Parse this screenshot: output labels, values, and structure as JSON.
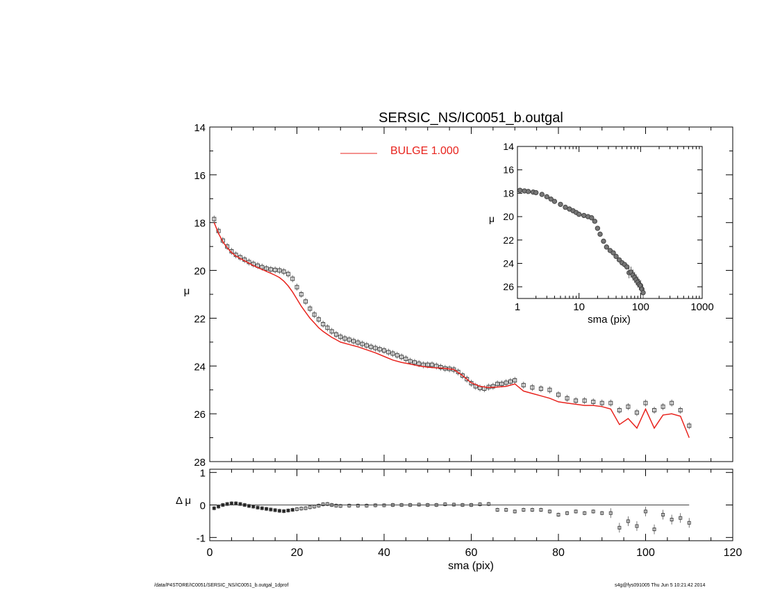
{
  "footer": {
    "left": "/data/P4STORE/IC0051/SERSIC_NS/IC0051_b.outgal_1dprof",
    "right": "s4g@fys091005  Thu Jun  5 10:21:42 2014"
  },
  "chart_data": [
    {
      "type": "line",
      "title": "SERSIC_NS/IC0051_b.outgal",
      "xlabel": "",
      "ylabel": "μ",
      "xlim": [
        0,
        120
      ],
      "ylim": [
        28,
        14
      ],
      "y_inverted": true,
      "xticks": [
        "0",
        "20",
        "40",
        "60",
        "80",
        "100",
        "120"
      ],
      "yticks": [
        "14",
        "16",
        "18",
        "20",
        "22",
        "24",
        "26",
        "28"
      ],
      "legend": {
        "placement": "top-center",
        "entries": [
          {
            "label": "BULGE  1.000",
            "color": "#e8231d"
          }
        ]
      },
      "series": [
        {
          "name": "BULGE  1.000",
          "style": "line",
          "color": "#e8231d",
          "x": [
            1,
            2,
            3,
            4,
            5,
            6,
            7,
            8,
            9,
            10,
            11,
            12,
            13,
            14,
            15,
            16,
            17,
            18,
            19,
            20,
            21,
            22,
            23,
            24,
            25,
            26,
            27,
            28,
            29,
            30,
            32,
            34,
            36,
            38,
            40,
            42,
            44,
            46,
            48,
            50,
            52,
            54,
            56,
            58,
            60,
            62,
            64,
            66,
            68,
            70,
            72,
            74,
            76,
            78,
            80,
            82,
            84,
            86,
            88,
            90,
            92,
            94,
            96,
            98,
            100,
            102,
            104,
            106,
            108,
            110
          ],
          "y": [
            18.0,
            18.45,
            18.8,
            19.05,
            19.25,
            19.4,
            19.5,
            19.6,
            19.7,
            19.8,
            19.88,
            19.96,
            20.04,
            20.12,
            20.2,
            20.3,
            20.45,
            20.65,
            20.9,
            21.2,
            21.5,
            21.75,
            22.0,
            22.2,
            22.4,
            22.55,
            22.68,
            22.8,
            22.9,
            23.0,
            23.1,
            23.2,
            23.32,
            23.45,
            23.6,
            23.75,
            23.85,
            23.92,
            24.0,
            24.05,
            24.08,
            24.1,
            24.15,
            24.4,
            24.7,
            24.85,
            24.9,
            24.88,
            24.85,
            24.75,
            25.05,
            25.15,
            25.25,
            25.35,
            25.5,
            25.55,
            25.6,
            25.65,
            25.65,
            25.7,
            25.8,
            26.45,
            26.2,
            26.6,
            25.8,
            26.6,
            26.05,
            26.0,
            26.1,
            27.0
          ]
        },
        {
          "name": "",
          "style": "markers",
          "color": "#444444",
          "x": [
            1,
            2,
            3,
            4,
            5,
            6,
            7,
            8,
            9,
            10,
            11,
            12,
            13,
            14,
            15,
            16,
            17,
            18,
            19,
            20,
            21,
            22,
            23,
            24,
            25,
            26,
            27,
            28,
            29,
            30,
            31,
            32,
            33,
            34,
            35,
            36,
            37,
            38,
            39,
            40,
            41,
            42,
            43,
            44,
            45,
            46,
            47,
            48,
            49,
            50,
            51,
            52,
            53,
            54,
            55,
            56,
            57,
            58,
            59,
            60,
            61,
            62,
            63,
            64,
            65,
            66,
            67,
            68,
            69,
            70,
            72,
            74,
            76,
            78,
            80,
            82,
            84,
            86,
            88,
            90,
            92,
            94,
            96,
            98,
            100,
            102,
            104,
            106,
            108,
            110
          ],
          "y": [
            17.85,
            18.35,
            18.75,
            19.0,
            19.2,
            19.35,
            19.45,
            19.55,
            19.65,
            19.73,
            19.8,
            19.86,
            19.92,
            19.96,
            19.98,
            20.0,
            20.05,
            20.15,
            20.35,
            20.7,
            21.0,
            21.3,
            21.6,
            21.85,
            22.05,
            22.25,
            22.4,
            22.55,
            22.68,
            22.78,
            22.85,
            22.9,
            22.96,
            23.02,
            23.08,
            23.14,
            23.2,
            23.25,
            23.3,
            23.35,
            23.42,
            23.48,
            23.55,
            23.62,
            23.7,
            23.8,
            23.85,
            23.9,
            23.95,
            23.95,
            23.95,
            24.0,
            24.05,
            24.1,
            24.12,
            24.15,
            24.25,
            24.4,
            24.55,
            24.72,
            24.85,
            24.92,
            24.95,
            24.88,
            24.85,
            24.75,
            24.75,
            24.7,
            24.65,
            24.6,
            24.8,
            24.9,
            24.95,
            25.0,
            25.2,
            25.35,
            25.45,
            25.45,
            25.5,
            25.55,
            25.55,
            25.85,
            25.7,
            25.95,
            25.55,
            25.85,
            25.7,
            25.55,
            25.85,
            26.5
          ]
        }
      ]
    },
    {
      "type": "line",
      "title": "",
      "xlabel": "sma (pix)",
      "ylabel": "Δ μ",
      "xlim": [
        0,
        120
      ],
      "ylim": [
        -1.1,
        1.1
      ],
      "xticks": [
        "0",
        "20",
        "40",
        "60",
        "80",
        "100",
        "120"
      ],
      "yticks": [
        "1",
        "0",
        "-1"
      ],
      "series": [
        {
          "name": "",
          "style": "markers",
          "color": "#444444",
          "x": [
            1,
            2,
            3,
            4,
            5,
            6,
            7,
            8,
            9,
            10,
            11,
            12,
            13,
            14,
            15,
            16,
            17,
            18,
            19,
            20,
            21,
            22,
            23,
            24,
            25,
            26,
            27,
            28,
            29,
            30,
            32,
            34,
            36,
            38,
            40,
            42,
            44,
            46,
            48,
            50,
            52,
            54,
            56,
            58,
            60,
            62,
            64,
            66,
            68,
            70,
            72,
            74,
            76,
            78,
            80,
            82,
            84,
            86,
            88,
            90,
            92,
            94,
            96,
            98,
            100,
            102,
            104,
            106,
            108,
            110
          ],
          "y": [
            -0.1,
            -0.05,
            0.0,
            0.03,
            0.05,
            0.05,
            0.03,
            0.0,
            -0.03,
            -0.05,
            -0.08,
            -0.1,
            -0.12,
            -0.14,
            -0.16,
            -0.18,
            -0.19,
            -0.17,
            -0.15,
            -0.13,
            -0.11,
            -0.1,
            -0.07,
            -0.05,
            -0.02,
            0.02,
            0.03,
            0.0,
            -0.02,
            -0.03,
            -0.02,
            -0.02,
            -0.02,
            -0.01,
            -0.01,
            0.0,
            0.0,
            0.0,
            0.01,
            0.0,
            0.0,
            0.02,
            0.01,
            0.0,
            0.0,
            0.02,
            0.03,
            -0.15,
            -0.15,
            -0.2,
            -0.15,
            -0.15,
            -0.15,
            -0.2,
            -0.3,
            -0.25,
            -0.2,
            -0.25,
            -0.2,
            -0.25,
            -0.25,
            -0.7,
            -0.5,
            -0.65,
            -0.2,
            -0.75,
            -0.3,
            -0.45,
            -0.4,
            -0.55
          ]
        }
      ]
    },
    {
      "type": "line",
      "title": "",
      "xlabel": "sma (pix)",
      "ylabel": "μ",
      "xscale": "log",
      "xlim": [
        1,
        1000
      ],
      "ylim": [
        27,
        14
      ],
      "y_inverted": true,
      "xticks": [
        "1",
        "10",
        "100",
        "1000"
      ],
      "yticks": [
        "14",
        "16",
        "18",
        "20",
        "22",
        "24",
        "26"
      ],
      "series": [
        {
          "name": "",
          "style": "markers",
          "color": "#444444",
          "x": [
            1.1,
            1.3,
            1.5,
            1.8,
            2.0,
            2.5,
            3.0,
            3.5,
            4.0,
            5.0,
            6.0,
            7.0,
            8.0,
            9.0,
            10,
            12,
            14,
            16,
            18,
            20,
            22,
            25,
            28,
            32,
            36,
            40,
            45,
            50,
            55,
            60,
            65,
            70,
            75,
            80,
            85,
            90,
            95,
            100,
            105,
            110
          ],
          "y": [
            17.75,
            17.8,
            17.85,
            17.9,
            17.95,
            18.1,
            18.3,
            18.5,
            18.7,
            18.95,
            19.2,
            19.35,
            19.5,
            19.65,
            19.8,
            19.9,
            20.0,
            20.1,
            20.4,
            21.0,
            21.5,
            22.1,
            22.6,
            22.9,
            23.1,
            23.4,
            23.7,
            23.95,
            24.1,
            24.3,
            24.8,
            24.75,
            25.0,
            25.2,
            25.4,
            25.6,
            25.8,
            25.9,
            26.2,
            26.5
          ]
        }
      ]
    }
  ]
}
